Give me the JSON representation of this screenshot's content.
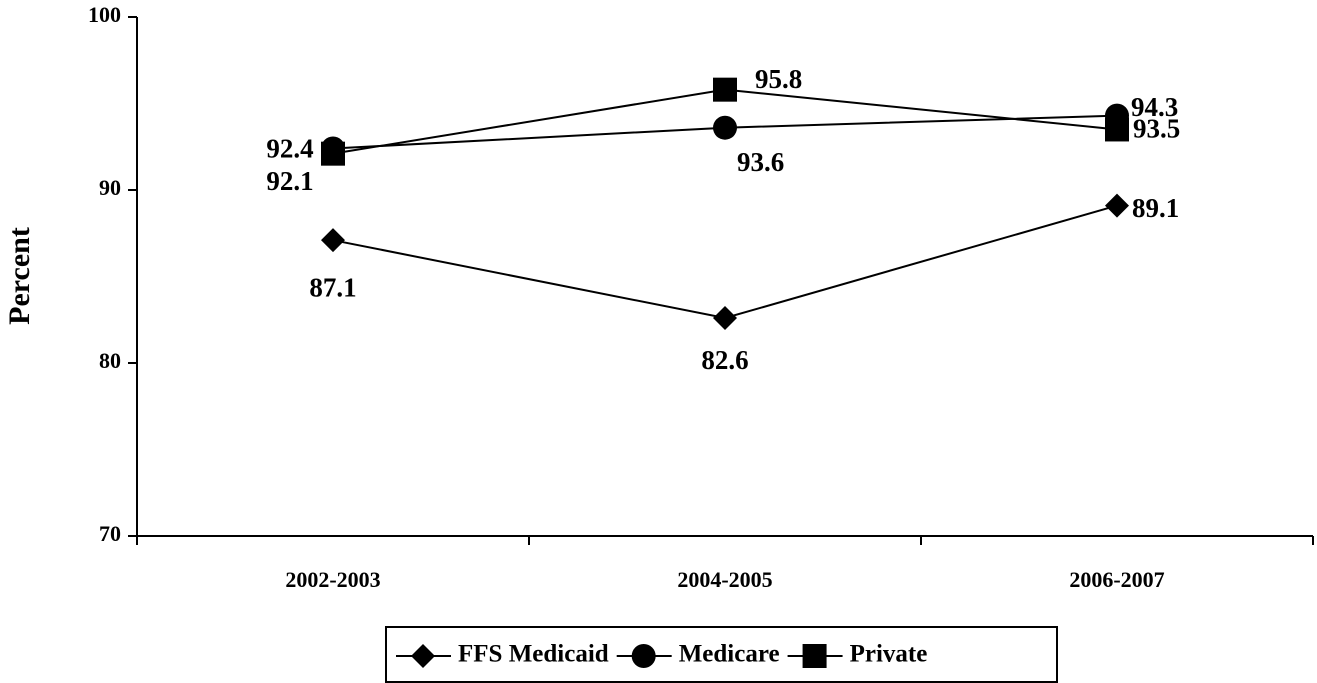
{
  "chart_data": {
    "type": "line",
    "y_label": "Percent",
    "categories": [
      "2002-2003",
      "2004-2005",
      "2006-2007"
    ],
    "series": [
      {
        "name": "FFS Medicaid",
        "color": "#000000",
        "marker": "diamond",
        "values": [
          87.1,
          82.6,
          89.1
        ]
      },
      {
        "name": "Medicare",
        "color": "#000000",
        "marker": "circle",
        "values": [
          92.4,
          93.6,
          94.3
        ]
      },
      {
        "name": "Private",
        "color": "#000000",
        "marker": "square",
        "values": [
          92.1,
          95.8,
          93.5
        ]
      }
    ],
    "ylim": [
      70,
      100
    ],
    "yticks": [
      70,
      80,
      90,
      100
    ],
    "grid": false,
    "legend": "bottom"
  }
}
